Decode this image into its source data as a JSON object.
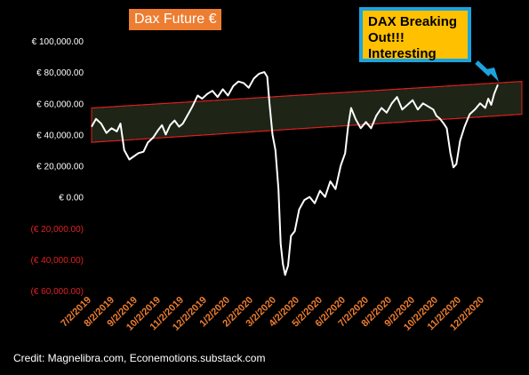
{
  "chart_data": {
    "type": "line",
    "title": "Dax Future €",
    "annotation": "DAX Breaking Out!!! Interesting",
    "credit": "Credit: Magnelibra.com, Econemotions.substack.com",
    "ylim": [
      -60000,
      100000
    ],
    "yticks": [
      {
        "value": 100000,
        "label": "€ 100,000.00",
        "negative": false
      },
      {
        "value": 80000,
        "label": "€ 80,000.00",
        "negative": false
      },
      {
        "value": 60000,
        "label": "€ 60,000.00",
        "negative": false
      },
      {
        "value": 40000,
        "label": "€ 40,000.00",
        "negative": false
      },
      {
        "value": 20000,
        "label": "€ 20,000.00",
        "negative": false
      },
      {
        "value": 0,
        "label": "€ 0.00",
        "negative": false
      },
      {
        "value": -20000,
        "label": "(€ 20,000.00)",
        "negative": true
      },
      {
        "value": -40000,
        "label": "(€ 40,000.00)",
        "negative": true
      },
      {
        "value": -60000,
        "label": "(€ 60,000.00)",
        "negative": true
      }
    ],
    "xlim": [
      "2019-07-02",
      "2020-12-31"
    ],
    "xticks": [
      "7/2/2019",
      "8/2/2019",
      "9/2/2019",
      "10/2/2019",
      "11/2/2019",
      "12/2/2019",
      "1/2/2020",
      "2/2/2020",
      "3/2/2020",
      "4/2/2020",
      "5/2/2020",
      "6/2/2020",
      "7/2/2020",
      "8/2/2020",
      "9/2/2020",
      "10/2/2020",
      "11/2/2020",
      "12/2/2020"
    ],
    "grid": false,
    "channel": {
      "upper": {
        "start": [
          "2019-07-02",
          57000
        ],
        "end": [
          "2020-12-31",
          73000
        ]
      },
      "lower": {
        "start": [
          "2019-07-02",
          35000
        ],
        "end": [
          "2020-12-31",
          52000
        ]
      },
      "fill": "#1E2416",
      "edge_color": "#E02020"
    },
    "colors": {
      "line": "#FFFFFF",
      "tick_positive": "#FFFFFF",
      "tick_negative": "#E02020",
      "xtick": "#ED7D31",
      "title_bg": "#ED7D31",
      "callout_bg": "#FFC000",
      "callout_border": "#1CA3DE",
      "arrow": "#1CA3DE"
    },
    "series": [
      {
        "values": [
          [
            "2019-07-02",
            45000
          ],
          [
            "2019-07-08",
            50000
          ],
          [
            "2019-07-15",
            47000
          ],
          [
            "2019-07-22",
            41000
          ],
          [
            "2019-07-29",
            44000
          ],
          [
            "2019-08-05",
            42000
          ],
          [
            "2019-08-10",
            47000
          ],
          [
            "2019-08-15",
            30000
          ],
          [
            "2019-08-22",
            24000
          ],
          [
            "2019-08-28",
            26000
          ],
          [
            "2019-09-03",
            28000
          ],
          [
            "2019-09-10",
            29000
          ],
          [
            "2019-09-16",
            35000
          ],
          [
            "2019-09-23",
            38000
          ],
          [
            "2019-09-30",
            43000
          ],
          [
            "2019-10-05",
            46000
          ],
          [
            "2019-10-10",
            40000
          ],
          [
            "2019-10-16",
            46000
          ],
          [
            "2019-10-22",
            49000
          ],
          [
            "2019-10-28",
            45000
          ],
          [
            "2019-11-02",
            47000
          ],
          [
            "2019-11-08",
            52000
          ],
          [
            "2019-11-15",
            58000
          ],
          [
            "2019-11-22",
            65000
          ],
          [
            "2019-11-28",
            63000
          ],
          [
            "2019-12-05",
            66000
          ],
          [
            "2019-12-12",
            68000
          ],
          [
            "2019-12-19",
            64000
          ],
          [
            "2019-12-26",
            69000
          ],
          [
            "2020-01-02",
            65000
          ],
          [
            "2020-01-09",
            71000
          ],
          [
            "2020-01-16",
            74000
          ],
          [
            "2020-01-23",
            73000
          ],
          [
            "2020-01-30",
            70000
          ],
          [
            "2020-02-06",
            76000
          ],
          [
            "2020-02-13",
            79000
          ],
          [
            "2020-02-20",
            80000
          ],
          [
            "2020-02-24",
            77000
          ],
          [
            "2020-02-27",
            60000
          ],
          [
            "2020-03-02",
            40000
          ],
          [
            "2020-03-06",
            30000
          ],
          [
            "2020-03-10",
            5000
          ],
          [
            "2020-03-13",
            -30000
          ],
          [
            "2020-03-16",
            -43000
          ],
          [
            "2020-03-19",
            -50000
          ],
          [
            "2020-03-23",
            -44000
          ],
          [
            "2020-03-27",
            -25000
          ],
          [
            "2020-04-01",
            -22000
          ],
          [
            "2020-04-07",
            -8000
          ],
          [
            "2020-04-14",
            -2000
          ],
          [
            "2020-04-21",
            0
          ],
          [
            "2020-04-28",
            -4000
          ],
          [
            "2020-05-05",
            4000
          ],
          [
            "2020-05-12",
            0
          ],
          [
            "2020-05-19",
            10000
          ],
          [
            "2020-05-26",
            5000
          ],
          [
            "2020-06-02",
            20000
          ],
          [
            "2020-06-08",
            28000
          ],
          [
            "2020-06-12",
            45000
          ],
          [
            "2020-06-16",
            57000
          ],
          [
            "2020-06-22",
            50000
          ],
          [
            "2020-06-29",
            44000
          ],
          [
            "2020-07-06",
            48000
          ],
          [
            "2020-07-13",
            44000
          ],
          [
            "2020-07-20",
            52000
          ],
          [
            "2020-07-27",
            57000
          ],
          [
            "2020-08-03",
            54000
          ],
          [
            "2020-08-10",
            60000
          ],
          [
            "2020-08-17",
            64000
          ],
          [
            "2020-08-24",
            56000
          ],
          [
            "2020-08-31",
            59000
          ],
          [
            "2020-09-07",
            62000
          ],
          [
            "2020-09-14",
            56000
          ],
          [
            "2020-09-21",
            60000
          ],
          [
            "2020-09-28",
            58000
          ],
          [
            "2020-10-05",
            56000
          ],
          [
            "2020-10-09",
            52000
          ],
          [
            "2020-10-14",
            50000
          ],
          [
            "2020-10-19",
            47000
          ],
          [
            "2020-10-23",
            44000
          ],
          [
            "2020-10-28",
            28000
          ],
          [
            "2020-11-01",
            19000
          ],
          [
            "2020-11-05",
            21000
          ],
          [
            "2020-11-10",
            36000
          ],
          [
            "2020-11-16",
            45000
          ],
          [
            "2020-11-23",
            53000
          ],
          [
            "2020-11-30",
            56000
          ],
          [
            "2020-12-07",
            60000
          ],
          [
            "2020-12-14",
            57000
          ],
          [
            "2020-12-18",
            63000
          ],
          [
            "2020-12-22",
            59000
          ],
          [
            "2020-12-26",
            66000
          ],
          [
            "2020-12-31",
            72000
          ]
        ]
      }
    ]
  }
}
